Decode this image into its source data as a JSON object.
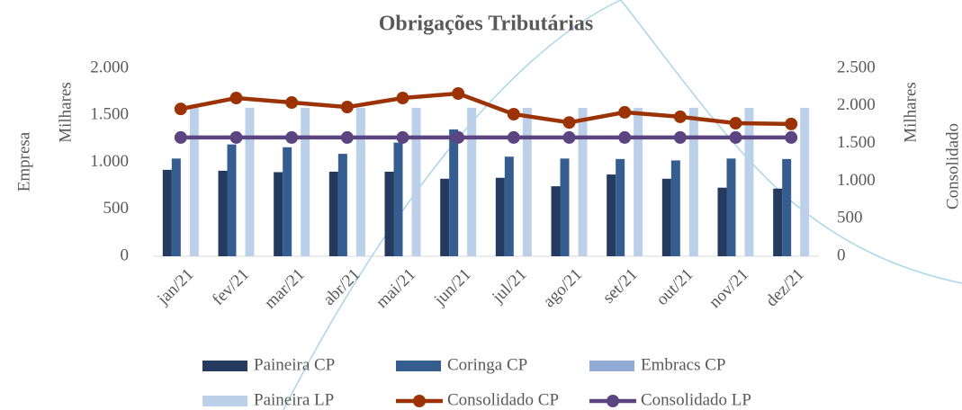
{
  "chart_data": {
    "type": "bar",
    "title": "Obrigações Tributárias",
    "y_label": "Empresa",
    "y_unit_label": "Milhares",
    "y2_label": "Consolidado",
    "y2_unit_label": "Milhares",
    "categories": [
      "jan/21",
      "fev/21",
      "mar/21",
      "abr/21",
      "mai/21",
      "jun/21",
      "jul/21",
      "ago/21",
      "set/21",
      "out/21",
      "nov/21",
      "dez/21"
    ],
    "series": [
      {
        "name": "Paineira CP",
        "type": "bar",
        "color": "#243a5e",
        "values": [
          920,
          910,
          895,
          900,
          900,
          825,
          835,
          745,
          870,
          825,
          730,
          720
        ]
      },
      {
        "name": "Coringa CP",
        "type": "bar",
        "color": "#355d8f",
        "values": [
          1040,
          1190,
          1160,
          1090,
          1210,
          1350,
          1060,
          1040,
          1035,
          1020,
          1040,
          1035
        ]
      },
      {
        "name": "Embracs CP",
        "type": "bar",
        "color": "#91abd6",
        "values": [
          0,
          0,
          0,
          0,
          0,
          0,
          0,
          0,
          0,
          0,
          0,
          0
        ]
      },
      {
        "name": "Paineira LP",
        "type": "bar",
        "color": "#bcd0ea",
        "values": [
          1580,
          1580,
          1580,
          1580,
          1580,
          1580,
          1580,
          1580,
          1580,
          1580,
          1580,
          1580
        ]
      },
      {
        "name": "Consolidado CP",
        "type": "line",
        "axis": "y2",
        "color": "#9c3307",
        "values": [
          1960,
          2105,
          2045,
          1985,
          2105,
          2165,
          1890,
          1780,
          1915,
          1855,
          1770,
          1760
        ]
      },
      {
        "name": "Consolidado LP",
        "type": "line",
        "axis": "y2",
        "color": "#5b4580",
        "values": [
          1580,
          1580,
          1580,
          1580,
          1580,
          1580,
          1580,
          1580,
          1580,
          1580,
          1580,
          1580
        ]
      }
    ],
    "ylim": [
      0,
      2000
    ],
    "yticks": [
      0,
      500,
      {
        "value": 1000,
        "label": "1.000"
      },
      {
        "value": 1500,
        "label": "1.500"
      },
      {
        "value": 2000,
        "label": "2.000"
      }
    ],
    "y2lim": [
      0,
      2500
    ],
    "y2ticks": [
      0,
      500,
      {
        "value": 1000,
        "label": "1.000"
      },
      {
        "value": 1500,
        "label": "1.500"
      },
      {
        "value": 2000,
        "label": "2.000"
      },
      {
        "value": 2500,
        "label": "2.500"
      }
    ],
    "grid": false,
    "legend": "bottom"
  }
}
